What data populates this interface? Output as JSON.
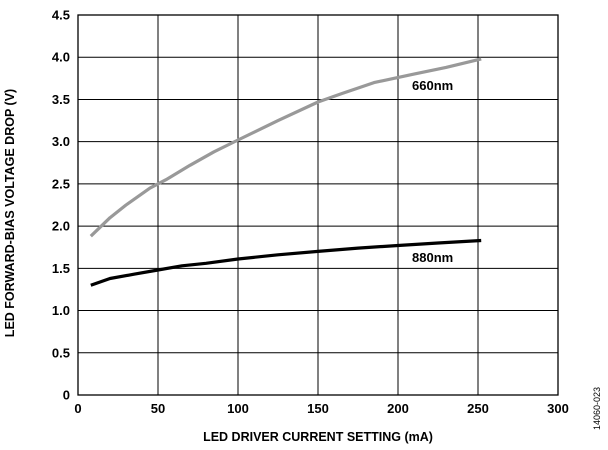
{
  "chart_data": {
    "type": "line",
    "title": "",
    "xlabel": "LED DRIVER CURRENT SETTING (mA)",
    "ylabel": "LED FORWARD-BIAS VOLTAGE DROP (V)",
    "xlim": [
      0,
      300
    ],
    "ylim": [
      0,
      4.5
    ],
    "xticks": [
      0,
      50,
      100,
      150,
      200,
      250,
      300
    ],
    "yticks": [
      0,
      0.5,
      1.0,
      1.5,
      2.0,
      2.5,
      3.0,
      3.5,
      4.0,
      4.5
    ],
    "xtick_labels": [
      "0",
      "50",
      "100",
      "150",
      "200",
      "250",
      "300"
    ],
    "ytick_labels": [
      "0",
      "0.5",
      "1.0",
      "1.5",
      "2.0",
      "2.5",
      "3.0",
      "3.5",
      "4.0",
      "4.5"
    ],
    "grid": true,
    "series": [
      {
        "name": "660nm",
        "color": "#999999",
        "x": [
          8,
          20,
          30,
          45,
          55,
          70,
          85,
          100,
          125,
          150,
          165,
          185,
          210,
          230,
          252
        ],
        "y": [
          1.88,
          2.1,
          2.25,
          2.45,
          2.55,
          2.72,
          2.88,
          3.02,
          3.25,
          3.47,
          3.57,
          3.7,
          3.8,
          3.88,
          3.98
        ]
      },
      {
        "name": "880nm",
        "color": "#000000",
        "x": [
          8,
          20,
          35,
          50,
          65,
          80,
          100,
          125,
          150,
          175,
          200,
          225,
          252
        ],
        "y": [
          1.3,
          1.38,
          1.43,
          1.48,
          1.53,
          1.56,
          1.61,
          1.66,
          1.7,
          1.74,
          1.77,
          1.8,
          1.83
        ]
      }
    ]
  },
  "figure_id": "14060-023"
}
